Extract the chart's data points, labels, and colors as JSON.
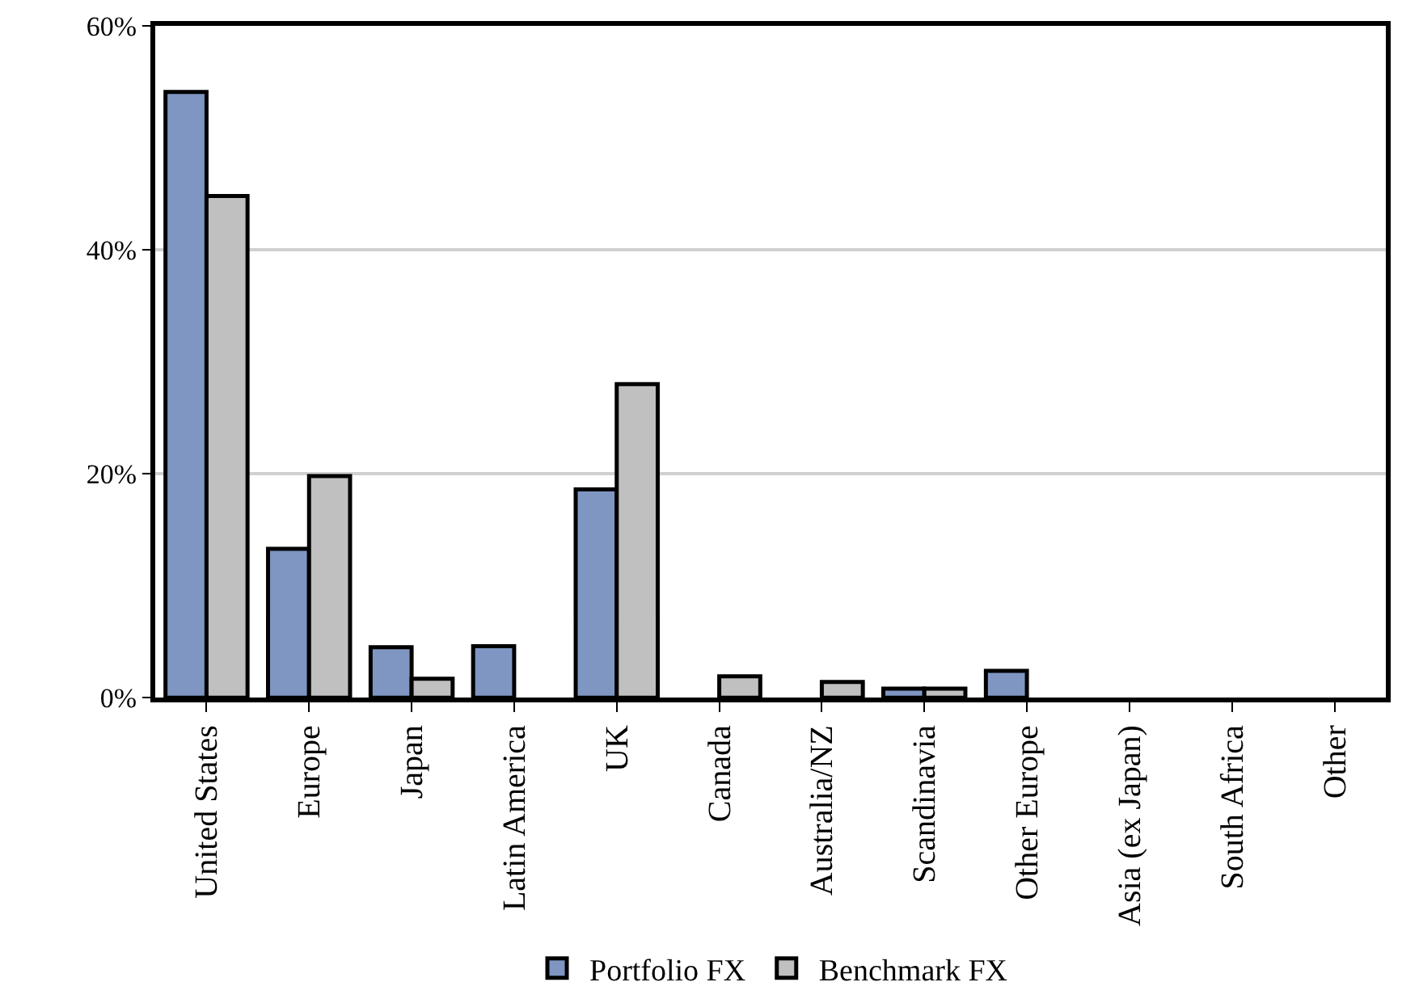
{
  "chart_data": {
    "type": "bar",
    "categories": [
      "United States",
      "Europe",
      "Japan",
      "Latin America",
      "UK",
      "Canada",
      "Australia/NZ",
      "Scandinavia",
      "Other Europe",
      "Asia (ex Japan)",
      "South Africa",
      "Other"
    ],
    "series": [
      {
        "name": "Portfolio FX",
        "color": "#7f96c2",
        "values": [
          54.1,
          13.3,
          4.5,
          4.6,
          18.6,
          null,
          null,
          0.8,
          2.4,
          null,
          null,
          null
        ]
      },
      {
        "name": "Benchmark FX",
        "color": "#c0c0c0",
        "values": [
          44.8,
          19.8,
          1.7,
          null,
          28.0,
          1.9,
          1.4,
          0.8,
          null,
          null,
          null,
          null
        ]
      }
    ],
    "ylim": [
      0,
      60
    ],
    "yticks": [
      {
        "value": 0,
        "label": "0%"
      },
      {
        "value": 20,
        "label": "20%"
      },
      {
        "value": 40,
        "label": "40%"
      },
      {
        "value": 60,
        "label": "60%"
      }
    ],
    "grid": "y",
    "legend": "bottom"
  }
}
